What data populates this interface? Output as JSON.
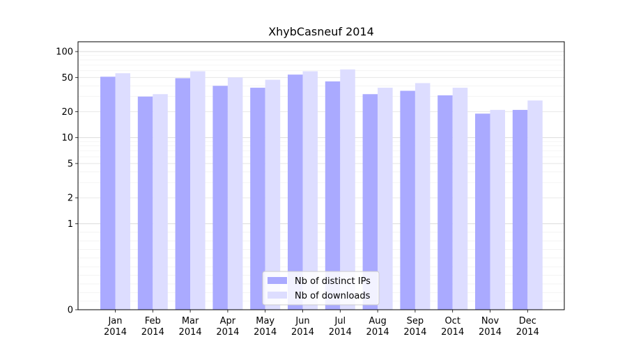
{
  "chart_data": {
    "type": "bar",
    "title": "XhybCasneuf 2014",
    "xlabel": "",
    "ylabel": "",
    "y_scale": "symlog",
    "ylim": [
      0,
      130
    ],
    "grid": true,
    "legend_position": "bottom-center",
    "y_ticks": [
      0,
      1,
      2,
      5,
      10,
      20,
      50,
      100
    ],
    "y_tick_labels": [
      "0",
      "1",
      "2",
      "5",
      "10",
      "20",
      "50",
      "100"
    ],
    "categories": [
      "Jan\n2014",
      "Feb\n2014",
      "Mar\n2014",
      "Apr\n2014",
      "May\n2014",
      "Jun\n2014",
      "Jul\n2014",
      "Aug\n2014",
      "Sep\n2014",
      "Oct\n2014",
      "Nov\n2014",
      "Dec\n2014"
    ],
    "series": [
      {
        "name": "Nb of distinct IPs",
        "color": "#aaaaff",
        "values": [
          51,
          30,
          49,
          40,
          38,
          54,
          45,
          32,
          35,
          31,
          19,
          21
        ]
      },
      {
        "name": "Nb of downloads",
        "color": "#ddddff",
        "values": [
          56,
          32,
          59,
          50,
          47,
          59,
          62,
          38,
          43,
          38,
          21,
          27
        ]
      }
    ]
  }
}
